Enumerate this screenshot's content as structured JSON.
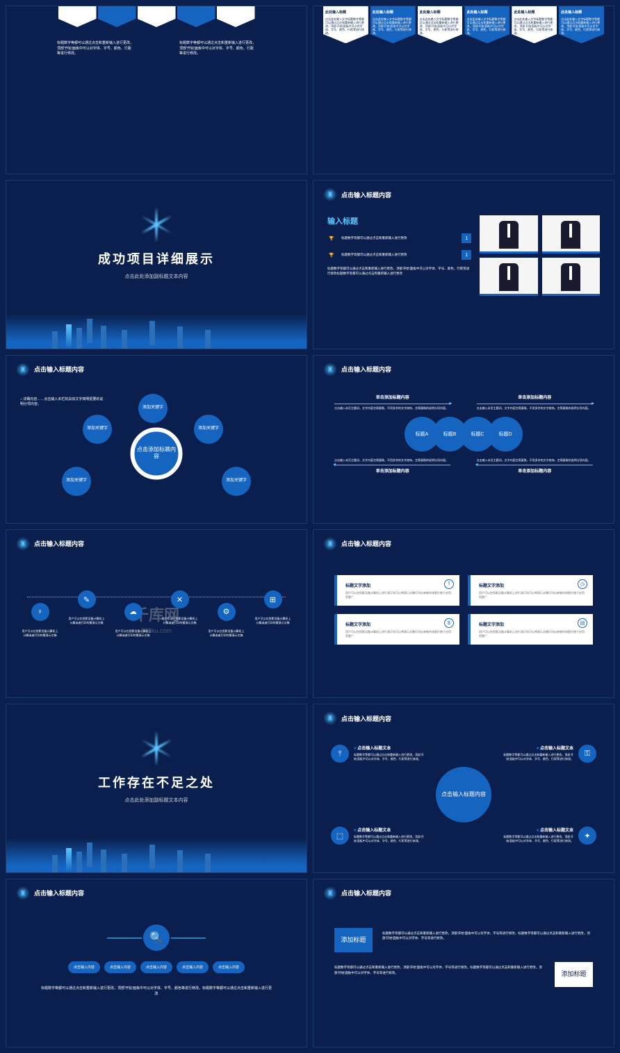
{
  "watermark": {
    "main": "千库网",
    "sub": "588ku.com"
  },
  "header_title": "点击输入标题内容",
  "colors": {
    "bg": "#0a1f4d",
    "accent": "#1565c0",
    "glow": "#5bc5ff",
    "white": "#ffffff"
  },
  "s1": {
    "text1": "标题数字等都可以通过点击和重新输入进行更改，顶部'开始'面板中可以对字体、字号、颜色、行距等进行修改。",
    "text2": "标题数字等都可以通过点击和重新输入进行更改，顶部'开始'面板中可以对字体、字号、颜色、行距等进行修改。"
  },
  "s2": {
    "pent_title": "此处输入标题",
    "pent_body": "点击此处输入文字标题数字等都可以通过点击和重新输入进行更改，顶部'开始'面板中可以对字体、字号、颜色、行距等进行修改。"
  },
  "s3": {
    "title": "成功项目详细展示",
    "subtitle": "点击此处添加副标题文本内容"
  },
  "s4": {
    "title": "输入标题",
    "item_text": "标题数字等都可以通过点击和重新输入进行更改",
    "badge": "1",
    "desc": "标题数字等都可以通过点击和重新输入进行更改，顶部'开始'面板中可以对字体、字号、颜色、行距等进行修改标题数字等都可以通过点击和重新输入进行更改"
  },
  "s5": {
    "center": "点击添加标题内容",
    "node": "添加关键字",
    "text": "详细内容……点击输入本栏的具体文字简明扼要的说明分项内容。"
  },
  "s6": {
    "col_title": "单击添加标题内容",
    "col_text": "点击输入本页主题词，文字内容言简意赅，不用多余的文字修饰，言简意赅的说明分项内容。",
    "circles": [
      "标题A",
      "标题B",
      "标题C",
      "标题D"
    ]
  },
  "s7": {
    "text": "用户可以在投影设备计算机上计算或者打印的需演示文稿"
  },
  "s8": {
    "card_title": "标题文字添加",
    "card_text": "用户可以在投影设备计算机上进行演示也可以将演示文稿打印出来制作成胶片便于应用到更广"
  },
  "s9": {
    "title": "工作存在不足之处",
    "subtitle": "点击此处添加副标题文本内容"
  },
  "s10": {
    "center": "点击输入标题内容",
    "item_title": "点击输入标题文本",
    "item_text": "标题数字等都可以通过点击和重新输入进行更改，顶部'开始'面板中可以对字体、字号、颜色、行距等进行修改。"
  },
  "s11": {
    "btn": "点击输入内容",
    "desc": "标题数字等都可以通过点击和重新输入进行更改，顶部'开始'面板中可以对字体、字号、颜色等进行修改。标题数字等都可以通过点击和重新输入进行更改"
  },
  "s12": {
    "label": "添加标题",
    "text": "标题数字等都可以通过点击和重新输入进行更改，顶部'开始'面板中可以对字体、字号等进行修改。标题数字等都可以通过点击和重新输入进行更改，顶部'开始'面板中可以对字体、字号等进行修改。"
  }
}
